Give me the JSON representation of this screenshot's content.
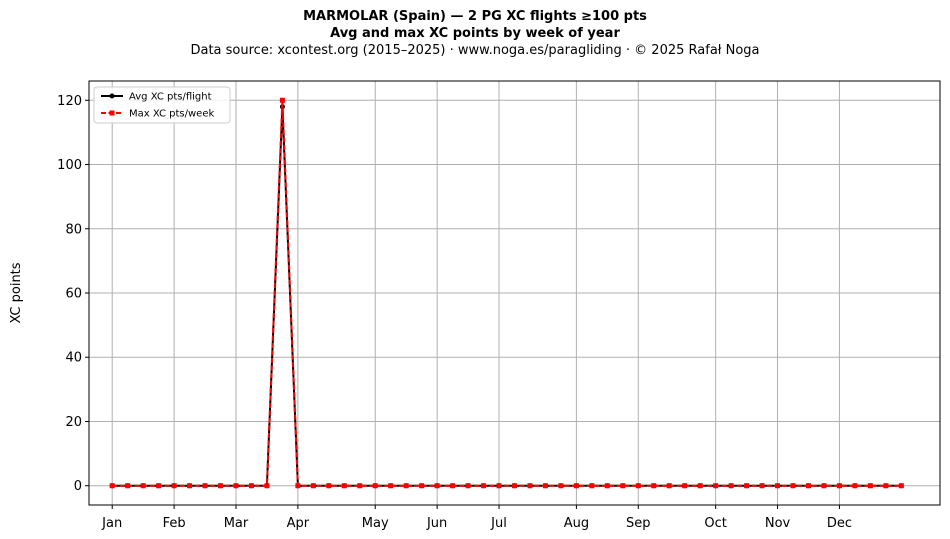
{
  "chart_data": {
    "type": "line",
    "title": "MARMOLAR (Spain)  —  2 PG XC flights ≥100 pts",
    "subtitle": "Avg and max XC points by week of year",
    "source": "Data source: xcontest.org (2015–2025)  ·  www.noga.es/paragliding  ·  © 2025 Rafał Noga",
    "xlabel": "",
    "ylabel": "XC points",
    "xlim": [
      -1.5,
      53.5
    ],
    "ylim": [
      -6,
      126
    ],
    "yticks": [
      0,
      20,
      40,
      60,
      80,
      100,
      120
    ],
    "xticks": [
      {
        "week": 0,
        "label": "Jan"
      },
      {
        "week": 4,
        "label": "Feb"
      },
      {
        "week": 8,
        "label": "Mar"
      },
      {
        "week": 12,
        "label": "Apr"
      },
      {
        "week": 17,
        "label": "May"
      },
      {
        "week": 21,
        "label": "Jun"
      },
      {
        "week": 25,
        "label": "Jul"
      },
      {
        "week": 30,
        "label": "Aug"
      },
      {
        "week": 34,
        "label": "Sep"
      },
      {
        "week": 39,
        "label": "Oct"
      },
      {
        "week": 43,
        "label": "Nov"
      },
      {
        "week": 47,
        "label": "Dec"
      }
    ],
    "grid": true,
    "legend_position": "top-left",
    "x": [
      0,
      1,
      2,
      3,
      4,
      5,
      6,
      7,
      8,
      9,
      10,
      11,
      12,
      13,
      14,
      15,
      16,
      17,
      18,
      19,
      20,
      21,
      22,
      23,
      24,
      25,
      26,
      27,
      28,
      29,
      30,
      31,
      32,
      33,
      34,
      35,
      36,
      37,
      38,
      39,
      40,
      41,
      42,
      43,
      44,
      45,
      46,
      47,
      48,
      49,
      50,
      51
    ],
    "series": [
      {
        "name": "Avg XC pts/flight",
        "color": "#000000",
        "style": "solid-circle",
        "values": [
          0,
          0,
          0,
          0,
          0,
          0,
          0,
          0,
          0,
          0,
          0,
          118,
          0,
          0,
          0,
          0,
          0,
          0,
          0,
          0,
          0,
          0,
          0,
          0,
          0,
          0,
          0,
          0,
          0,
          0,
          0,
          0,
          0,
          0,
          0,
          0,
          0,
          0,
          0,
          0,
          0,
          0,
          0,
          0,
          0,
          0,
          0,
          0,
          0,
          0,
          0,
          0
        ]
      },
      {
        "name": "Max XC pts/week",
        "color": "#ff0000",
        "style": "dashed-square",
        "values": [
          0,
          0,
          0,
          0,
          0,
          0,
          0,
          0,
          0,
          0,
          0,
          120,
          0,
          0,
          0,
          0,
          0,
          0,
          0,
          0,
          0,
          0,
          0,
          0,
          0,
          0,
          0,
          0,
          0,
          0,
          0,
          0,
          0,
          0,
          0,
          0,
          0,
          0,
          0,
          0,
          0,
          0,
          0,
          0,
          0,
          0,
          0,
          0,
          0,
          0,
          0,
          0
        ]
      }
    ]
  }
}
